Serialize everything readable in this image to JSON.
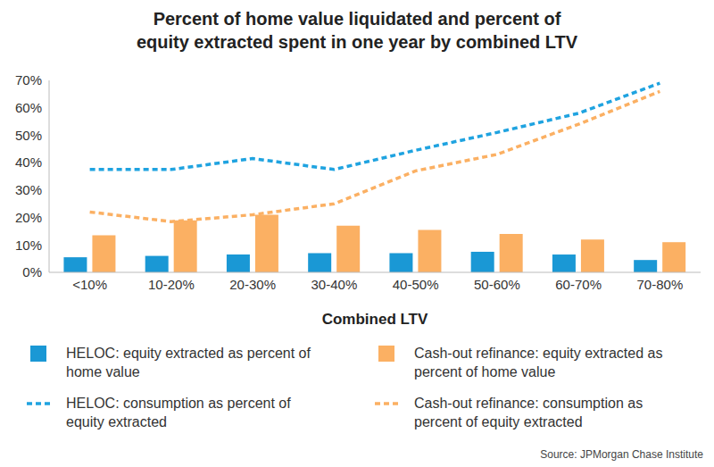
{
  "chart_data": {
    "type": "bar",
    "title": "Percent of home value liquidated and percent of equity extracted spent in one year by combined LTV",
    "x_label": "Combined LTV",
    "source": "Source: JPMorgan Chase Institute",
    "categories": [
      "<10%",
      "10-20%",
      "20-30%",
      "30-40%",
      "40-50%",
      "50-60%",
      "60-70%",
      "70-80%"
    ],
    "series": [
      {
        "name": "HELOC: equity extracted as percent of home value",
        "type": "bar",
        "color": "#1a98d5",
        "values": [
          5.5,
          6,
          6.5,
          7,
          7,
          7.5,
          6.5,
          4.5
        ]
      },
      {
        "name": "Cash-out refinance: equity extracted as percent of home value",
        "type": "bar",
        "color": "#fbb063",
        "values": [
          13.5,
          19,
          21,
          17,
          15.5,
          14,
          12,
          11
        ]
      },
      {
        "name": "HELOC: consumption as percent of equity extracted",
        "type": "line",
        "line_style": "dashed",
        "color": "#1fa3e0",
        "values": [
          37.5,
          37.5,
          41.5,
          37.5,
          44.5,
          51,
          58,
          69
        ]
      },
      {
        "name": "Cash-out refinance: consumption as percent of equity extracted",
        "type": "line",
        "line_style": "dashed",
        "color": "#fbb063",
        "values": [
          22,
          18.5,
          21,
          25,
          37,
          43,
          54,
          66
        ]
      }
    ],
    "ylim": [
      0,
      70
    ],
    "yticks": [
      {
        "value": 0,
        "label": "0%"
      },
      {
        "value": 10,
        "label": "10%"
      },
      {
        "value": 20,
        "label": "20%"
      },
      {
        "value": 30,
        "label": "30%"
      },
      {
        "value": 40,
        "label": "40%"
      },
      {
        "value": 50,
        "label": "50%"
      },
      {
        "value": 60,
        "label": "60%"
      },
      {
        "value": 70,
        "label": "70%"
      }
    ],
    "grid": false,
    "legend": "bottom"
  }
}
